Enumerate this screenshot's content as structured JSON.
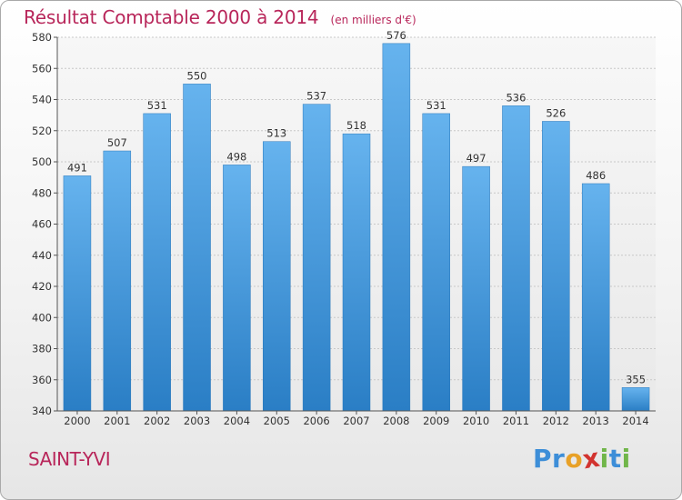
{
  "chart_data": {
    "type": "bar",
    "title": "Résultat Comptable 2000 à 2014",
    "unit_note": "(en milliers d'€)",
    "categories": [
      "2000",
      "2001",
      "2002",
      "2003",
      "2004",
      "2005",
      "2006",
      "2007",
      "2008",
      "2009",
      "2010",
      "2011",
      "2012",
      "2013",
      "2014"
    ],
    "values": [
      491,
      507,
      531,
      550,
      498,
      513,
      537,
      518,
      576,
      531,
      497,
      536,
      526,
      486,
      355
    ],
    "ylim": [
      340,
      580
    ],
    "yticks": [
      340,
      360,
      380,
      400,
      420,
      440,
      460,
      480,
      500,
      520,
      540,
      560,
      580
    ],
    "grid": true,
    "bar_color_top": "#66b3ee",
    "bar_color_bottom": "#2a7ec5"
  },
  "footer": {
    "city": "SAINT-YVI",
    "brand_letters": [
      {
        "ch": "P",
        "color": "#3d8ed8"
      },
      {
        "ch": "r",
        "color": "#3d8ed8"
      },
      {
        "ch": "o",
        "color": "#e8a127"
      },
      {
        "ch": "x",
        "color": "#d2332f"
      },
      {
        "ch": "i",
        "color": "#71b64a"
      },
      {
        "ch": "t",
        "color": "#3d8ed8"
      },
      {
        "ch": "i",
        "color": "#71b64a"
      }
    ]
  }
}
